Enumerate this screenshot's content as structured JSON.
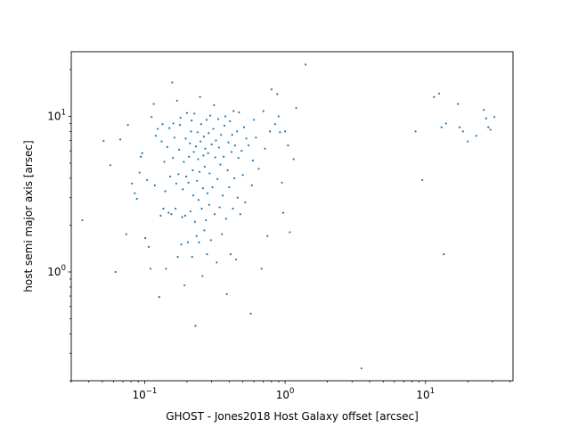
{
  "chart_data": {
    "type": "scatter",
    "xlabel": "GHOST - Jones2018 Host Galaxy offset [arcsec]",
    "ylabel": "host semi major axis [arsec]",
    "xscale": "log",
    "yscale": "log",
    "xlim": [
      0.03,
      42
    ],
    "ylim": [
      0.2,
      26
    ],
    "grid": false,
    "legend": "none",
    "marker_color": "#1f77b4",
    "x_ticks": [
      {
        "label_base": "10",
        "label_exp": "−1",
        "value": 0.1
      },
      {
        "label_base": "10",
        "label_exp": "0",
        "value": 1
      },
      {
        "label_base": "10",
        "label_exp": "1",
        "value": 10
      }
    ],
    "y_ticks": [
      {
        "label_base": "10",
        "label_exp": "0",
        "value": 1
      },
      {
        "label_base": "10",
        "label_exp": "1",
        "value": 10
      }
    ],
    "points": [
      [
        0.036,
        2.15
      ],
      [
        0.051,
        6.95
      ],
      [
        0.057,
        4.85
      ],
      [
        0.062,
        1.0
      ],
      [
        0.067,
        7.1
      ],
      [
        0.074,
        1.75
      ],
      [
        0.076,
        8.8
      ],
      [
        0.081,
        3.7
      ],
      [
        0.085,
        3.2
      ],
      [
        0.088,
        2.95
      ],
      [
        0.092,
        4.35
      ],
      [
        0.094,
        5.5
      ],
      [
        0.096,
        5.8
      ],
      [
        0.101,
        1.65
      ],
      [
        0.104,
        3.9
      ],
      [
        0.107,
        1.45
      ],
      [
        0.11,
        1.05
      ],
      [
        0.112,
        9.9
      ],
      [
        0.116,
        12.0
      ],
      [
        0.118,
        3.6
      ],
      [
        0.12,
        7.5
      ],
      [
        0.124,
        8.3
      ],
      [
        0.127,
        0.69
      ],
      [
        0.13,
        2.3
      ],
      [
        0.132,
        6.9
      ],
      [
        0.134,
        8.9
      ],
      [
        0.136,
        2.55
      ],
      [
        0.138,
        5.1
      ],
      [
        0.14,
        3.3
      ],
      [
        0.142,
        1.05
      ],
      [
        0.145,
        6.35
      ],
      [
        0.148,
        2.4
      ],
      [
        0.15,
        8.4
      ],
      [
        0.152,
        4.1
      ],
      [
        0.155,
        2.35
      ],
      [
        0.157,
        16.5
      ],
      [
        0.159,
        5.4
      ],
      [
        0.16,
        9.0
      ],
      [
        0.163,
        7.3
      ],
      [
        0.166,
        2.55
      ],
      [
        0.168,
        3.7
      ],
      [
        0.17,
        12.6
      ],
      [
        0.172,
        1.25
      ],
      [
        0.174,
        4.25
      ],
      [
        0.176,
        6.1
      ],
      [
        0.178,
        8.8
      ],
      [
        0.18,
        9.8
      ],
      [
        0.182,
        1.5
      ],
      [
        0.185,
        2.25
      ],
      [
        0.187,
        3.4
      ],
      [
        0.19,
        5.1
      ],
      [
        0.192,
        0.82
      ],
      [
        0.194,
        2.3
      ],
      [
        0.196,
        7.2
      ],
      [
        0.198,
        4.1
      ],
      [
        0.2,
        10.5
      ],
      [
        0.203,
        1.55
      ],
      [
        0.205,
        3.75
      ],
      [
        0.207,
        5.5
      ],
      [
        0.21,
        6.7
      ],
      [
        0.212,
        2.45
      ],
      [
        0.214,
        8.0
      ],
      [
        0.216,
        9.4
      ],
      [
        0.218,
        1.25
      ],
      [
        0.22,
        4.5
      ],
      [
        0.222,
        3.1
      ],
      [
        0.224,
        5.9
      ],
      [
        0.226,
        10.4
      ],
      [
        0.228,
        2.1
      ],
      [
        0.23,
        0.45
      ],
      [
        0.232,
        6.4
      ],
      [
        0.234,
        1.7
      ],
      [
        0.236,
        3.85
      ],
      [
        0.238,
        7.9
      ],
      [
        0.24,
        5.3
      ],
      [
        0.242,
        2.9
      ],
      [
        0.244,
        1.55
      ],
      [
        0.246,
        4.4
      ],
      [
        0.248,
        13.3
      ],
      [
        0.25,
        6.9
      ],
      [
        0.252,
        8.9
      ],
      [
        0.255,
        2.55
      ],
      [
        0.258,
        0.94
      ],
      [
        0.26,
        3.45
      ],
      [
        0.262,
        5.6
      ],
      [
        0.264,
        7.4
      ],
      [
        0.266,
        1.85
      ],
      [
        0.268,
        4.75
      ],
      [
        0.27,
        6.2
      ],
      [
        0.273,
        2.15
      ],
      [
        0.276,
        9.5
      ],
      [
        0.278,
        1.3
      ],
      [
        0.28,
        3.2
      ],
      [
        0.283,
        5.8
      ],
      [
        0.286,
        7.8
      ],
      [
        0.288,
        2.7
      ],
      [
        0.29,
        4.3
      ],
      [
        0.293,
        10.1
      ],
      [
        0.296,
        1.6
      ],
      [
        0.3,
        6.6
      ],
      [
        0.304,
        3.5
      ],
      [
        0.308,
        8.3
      ],
      [
        0.312,
        11.8
      ],
      [
        0.315,
        2.35
      ],
      [
        0.318,
        5.45
      ],
      [
        0.322,
        7.0
      ],
      [
        0.326,
        1.15
      ],
      [
        0.33,
        3.95
      ],
      [
        0.334,
        9.6
      ],
      [
        0.338,
        6.3
      ],
      [
        0.342,
        2.6
      ],
      [
        0.346,
        4.9
      ],
      [
        0.35,
        7.6
      ],
      [
        0.355,
        1.75
      ],
      [
        0.36,
        3.1
      ],
      [
        0.365,
        5.5
      ],
      [
        0.37,
        8.7
      ],
      [
        0.375,
        10.0
      ],
      [
        0.38,
        2.2
      ],
      [
        0.385,
        0.72
      ],
      [
        0.39,
        4.5
      ],
      [
        0.395,
        6.8
      ],
      [
        0.4,
        3.5
      ],
      [
        0.405,
        9.3
      ],
      [
        0.41,
        1.3
      ],
      [
        0.415,
        5.9
      ],
      [
        0.42,
        7.6
      ],
      [
        0.425,
        2.55
      ],
      [
        0.43,
        10.8
      ],
      [
        0.435,
        4.0
      ],
      [
        0.44,
        6.5
      ],
      [
        0.448,
        1.2
      ],
      [
        0.455,
        8.0
      ],
      [
        0.46,
        3.0
      ],
      [
        0.465,
        5.4
      ],
      [
        0.47,
        10.6
      ],
      [
        0.48,
        2.35
      ],
      [
        0.49,
        6.0
      ],
      [
        0.5,
        4.2
      ],
      [
        0.51,
        8.5
      ],
      [
        0.52,
        2.8
      ],
      [
        0.53,
        7.2
      ],
      [
        0.55,
        6.5
      ],
      [
        0.57,
        0.54
      ],
      [
        0.58,
        3.6
      ],
      [
        0.59,
        5.2
      ],
      [
        0.6,
        9.5
      ],
      [
        0.62,
        7.3
      ],
      [
        0.65,
        4.6
      ],
      [
        0.68,
        1.05
      ],
      [
        0.7,
        10.8
      ],
      [
        0.72,
        6.2
      ],
      [
        0.75,
        1.7
      ],
      [
        0.78,
        8.0
      ],
      [
        0.8,
        14.9
      ],
      [
        0.85,
        8.9
      ],
      [
        0.88,
        13.9
      ],
      [
        0.9,
        10.0
      ],
      [
        0.92,
        7.9
      ],
      [
        0.95,
        3.75
      ],
      [
        0.97,
        2.4
      ],
      [
        1.0,
        8.0
      ],
      [
        1.05,
        6.5
      ],
      [
        1.08,
        1.8
      ],
      [
        1.15,
        5.3
      ],
      [
        1.2,
        11.3
      ],
      [
        1.4,
        21.5
      ],
      [
        3.5,
        0.24
      ],
      [
        8.5,
        8.0
      ],
      [
        9.5,
        3.9
      ],
      [
        11.5,
        13.3
      ],
      [
        12.5,
        14.0
      ],
      [
        13.0,
        8.5
      ],
      [
        13.5,
        1.3
      ],
      [
        14.0,
        9.0
      ],
      [
        17.0,
        12.0
      ],
      [
        17.5,
        8.5
      ],
      [
        18.5,
        8.0
      ],
      [
        20.0,
        6.9
      ],
      [
        23.0,
        7.5
      ],
      [
        26.0,
        11.0
      ],
      [
        27.0,
        9.7
      ],
      [
        28.0,
        8.5
      ],
      [
        29.0,
        8.2
      ],
      [
        31.0,
        9.9
      ]
    ]
  }
}
